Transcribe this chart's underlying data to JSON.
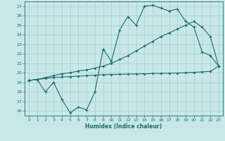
{
  "xlabel": "Humidex (Indice chaleur)",
  "bg_color": "#c8e8e8",
  "grid_color": "#a8cccc",
  "line_color": "#1a6b6b",
  "xlim": [
    -0.5,
    23.5
  ],
  "ylim": [
    15.5,
    27.5
  ],
  "xticks": [
    0,
    1,
    2,
    3,
    4,
    5,
    6,
    7,
    8,
    9,
    10,
    11,
    12,
    13,
    14,
    15,
    16,
    17,
    18,
    19,
    20,
    21,
    22,
    23
  ],
  "yticks": [
    16,
    17,
    18,
    19,
    20,
    21,
    22,
    23,
    24,
    25,
    26,
    27
  ],
  "line1_x": [
    0,
    1,
    2,
    3,
    4,
    5,
    6,
    7,
    8,
    9,
    10,
    11,
    12,
    13,
    14,
    15,
    16,
    17,
    18,
    19,
    20,
    21,
    22,
    23
  ],
  "line1_y": [
    19.2,
    19.3,
    18.0,
    19.0,
    17.2,
    15.8,
    16.4,
    16.1,
    18.0,
    22.5,
    21.2,
    24.5,
    25.9,
    25.0,
    27.0,
    27.1,
    26.8,
    26.5,
    26.7,
    25.4,
    24.8,
    22.2,
    21.8,
    20.7
  ],
  "line2_x": [
    0,
    1,
    2,
    3,
    4,
    5,
    6,
    7,
    8,
    9,
    10,
    11,
    12,
    13,
    14,
    15,
    16,
    17,
    18,
    19,
    20,
    21,
    22,
    23
  ],
  "line2_y": [
    19.2,
    19.3,
    19.5,
    19.7,
    19.9,
    20.0,
    20.2,
    20.3,
    20.5,
    20.7,
    21.0,
    21.4,
    21.8,
    22.3,
    22.8,
    23.3,
    23.8,
    24.2,
    24.6,
    25.0,
    25.4,
    24.8,
    23.8,
    20.7
  ],
  "line3_x": [
    0,
    1,
    2,
    3,
    4,
    5,
    6,
    7,
    8,
    9,
    10,
    11,
    12,
    13,
    14,
    15,
    16,
    17,
    18,
    19,
    20,
    21,
    22,
    23
  ],
  "line3_y": [
    19.2,
    19.3,
    19.4,
    19.5,
    19.55,
    19.6,
    19.65,
    19.7,
    19.75,
    19.8,
    19.82,
    19.84,
    19.86,
    19.88,
    19.9,
    19.92,
    19.94,
    19.96,
    19.98,
    20.0,
    20.05,
    20.1,
    20.15,
    20.7
  ]
}
